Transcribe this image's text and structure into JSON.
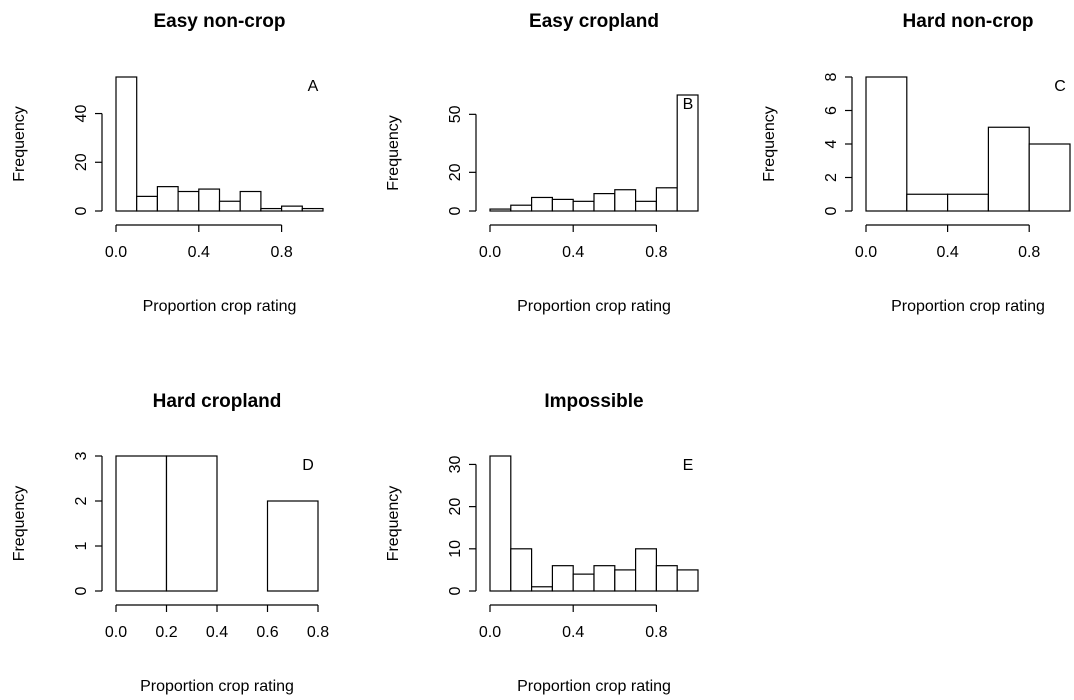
{
  "chart_data": [
    {
      "type": "histogram",
      "title": "Easy non-crop",
      "x_label": "Proportion crop rating",
      "y_label": "Frequency",
      "annotation": "A",
      "bins": [
        0,
        0.1,
        0.2,
        0.3,
        0.4,
        0.5,
        0.6,
        0.7,
        0.8,
        0.9,
        1.0
      ],
      "values": [
        55,
        6,
        10,
        8,
        9,
        4,
        8,
        1,
        2,
        1
      ],
      "xlim": [
        0,
        1
      ],
      "ylim": [
        0,
        55
      ],
      "xticks": [
        {
          "value": 0,
          "label": "0.0"
        },
        {
          "value": 0.4,
          "label": "0.4"
        },
        {
          "value": 0.8,
          "label": "0.8"
        }
      ],
      "yticks": [
        0,
        20,
        40
      ]
    },
    {
      "type": "histogram",
      "title": "Easy cropland",
      "x_label": "Proportion crop rating",
      "y_label": "Frequency",
      "annotation": "B",
      "bins": [
        0,
        0.1,
        0.2,
        0.3,
        0.4,
        0.5,
        0.6,
        0.7,
        0.8,
        0.9,
        1.0
      ],
      "values": [
        1,
        3,
        7,
        6,
        5,
        9,
        11,
        5,
        12,
        60
      ],
      "xlim": [
        0,
        1
      ],
      "ylim": [
        0,
        60
      ],
      "xticks": [
        {
          "value": 0,
          "label": "0.0"
        },
        {
          "value": 0.4,
          "label": "0.4"
        },
        {
          "value": 0.8,
          "label": "0.8"
        }
      ],
      "yticks": [
        0,
        20,
        50
      ]
    },
    {
      "type": "histogram",
      "title": "Hard non-crop",
      "x_label": "Proportion crop rating",
      "y_label": "Frequency",
      "annotation": "C",
      "bins": [
        0,
        0.2,
        0.4,
        0.6,
        0.8,
        1.0
      ],
      "values": [
        8,
        1,
        1,
        5,
        4
      ],
      "xlim": [
        0,
        1
      ],
      "ylim": [
        0,
        8
      ],
      "xticks": [
        {
          "value": 0,
          "label": "0.0"
        },
        {
          "value": 0.4,
          "label": "0.4"
        },
        {
          "value": 0.8,
          "label": "0.8"
        }
      ],
      "yticks": [
        0,
        2,
        4,
        6,
        8
      ]
    },
    {
      "type": "histogram",
      "title": "Hard cropland",
      "x_label": "Proportion crop rating",
      "y_label": "Frequency",
      "annotation": "D",
      "bins": [
        0,
        0.2,
        0.4,
        0.6,
        0.8
      ],
      "values": [
        3,
        3,
        0,
        2
      ],
      "xlim": [
        0,
        0.8
      ],
      "ylim": [
        0,
        3
      ],
      "xticks": [
        {
          "value": 0,
          "label": "0.0"
        },
        {
          "value": 0.2,
          "label": "0.2"
        },
        {
          "value": 0.4,
          "label": "0.4"
        },
        {
          "value": 0.6,
          "label": "0.6"
        },
        {
          "value": 0.8,
          "label": "0.8"
        }
      ],
      "yticks": [
        0,
        1,
        2,
        3
      ]
    },
    {
      "type": "histogram",
      "title": "Impossible",
      "x_label": "Proportion crop rating",
      "y_label": "Frequency",
      "annotation": "E",
      "bins": [
        0,
        0.1,
        0.2,
        0.3,
        0.4,
        0.5,
        0.6,
        0.7,
        0.8,
        0.9,
        1.0
      ],
      "values": [
        32,
        10,
        1,
        6,
        4,
        6,
        5,
        10,
        6,
        5
      ],
      "xlim": [
        0,
        1
      ],
      "ylim": [
        0,
        32
      ],
      "xticks": [
        {
          "value": 0,
          "label": "0.0"
        },
        {
          "value": 0.4,
          "label": "0.4"
        },
        {
          "value": 0.8,
          "label": "0.8"
        }
      ],
      "yticks": [
        0,
        10,
        20,
        30
      ]
    }
  ]
}
